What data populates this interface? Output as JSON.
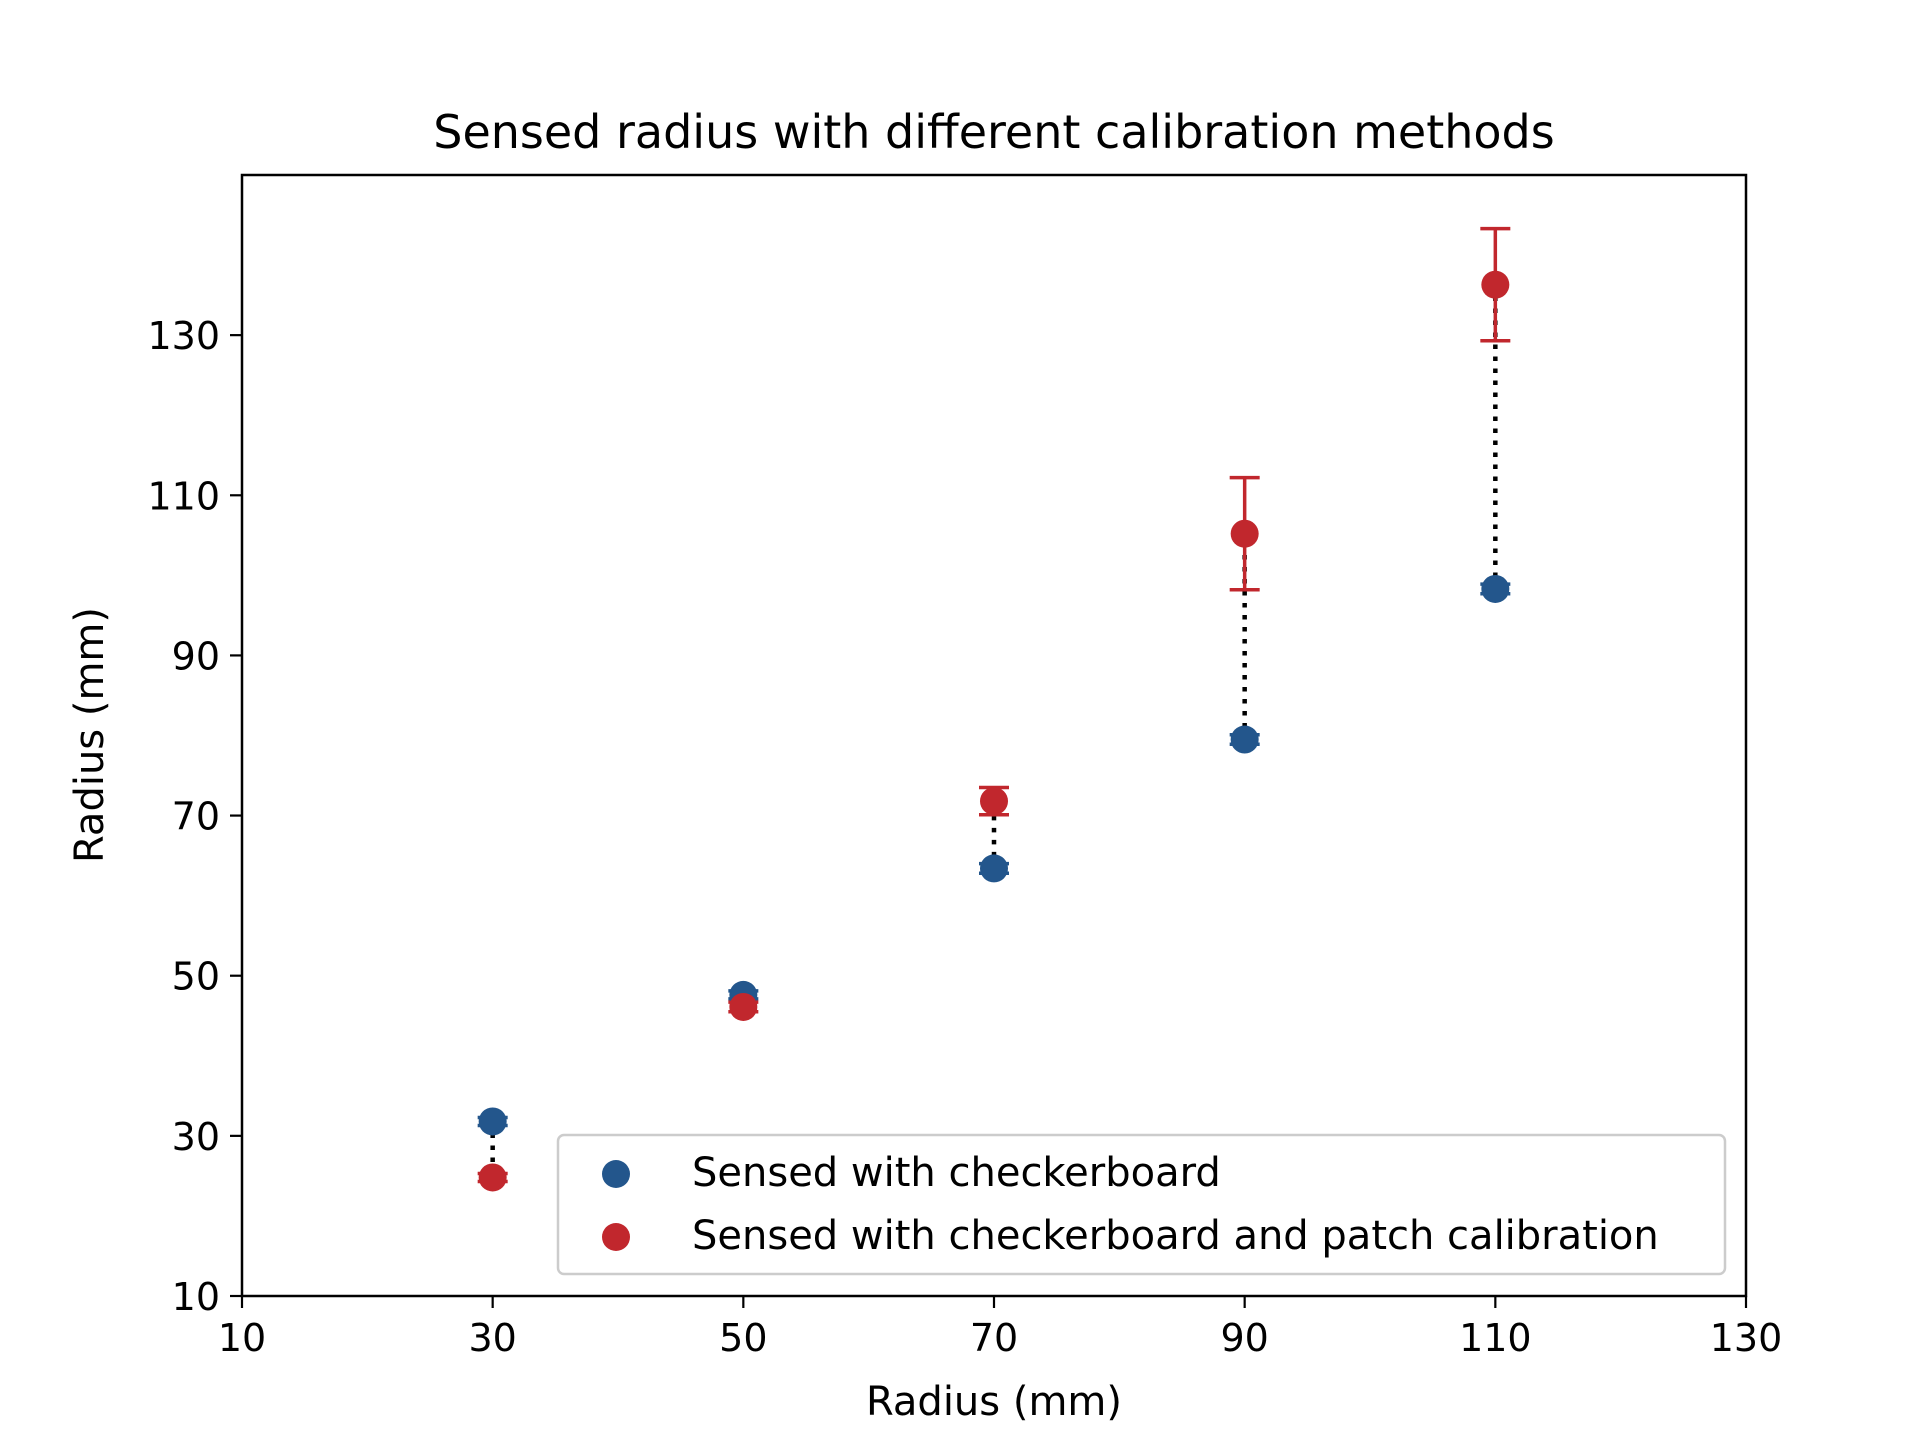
{
  "chart_data": {
    "type": "scatter",
    "title": "Sensed radius with different calibration methods",
    "xlabel": "Radius (mm)",
    "ylabel": "Radius (mm)",
    "xlim": [
      10,
      130
    ],
    "ylim": [
      10,
      150
    ],
    "xticks": [
      10,
      30,
      50,
      70,
      90,
      110,
      130
    ],
    "yticks": [
      10,
      30,
      50,
      70,
      90,
      110,
      130
    ],
    "grid": false,
    "legend_position": "lower-right",
    "series": [
      {
        "name": "Sensed with checkerboard",
        "color": "#23568c",
        "x": [
          30,
          50,
          70,
          90,
          110
        ],
        "y": [
          31.8,
          47.6,
          63.4,
          79.5,
          98.3
        ],
        "err": [
          0.5,
          0.5,
          0.6,
          0.6,
          0.6
        ]
      },
      {
        "name": "Sensed with checkerboard and patch calibration",
        "color": "#c1272d",
        "x": [
          30,
          50,
          70,
          90,
          110
        ],
        "y": [
          24.8,
          46.1,
          71.8,
          105.2,
          136.3
        ],
        "err": [
          0.5,
          0.6,
          1.7,
          7.0,
          7.0
        ]
      }
    ],
    "connectors": {
      "style": "dotted",
      "color": "#000000"
    }
  }
}
